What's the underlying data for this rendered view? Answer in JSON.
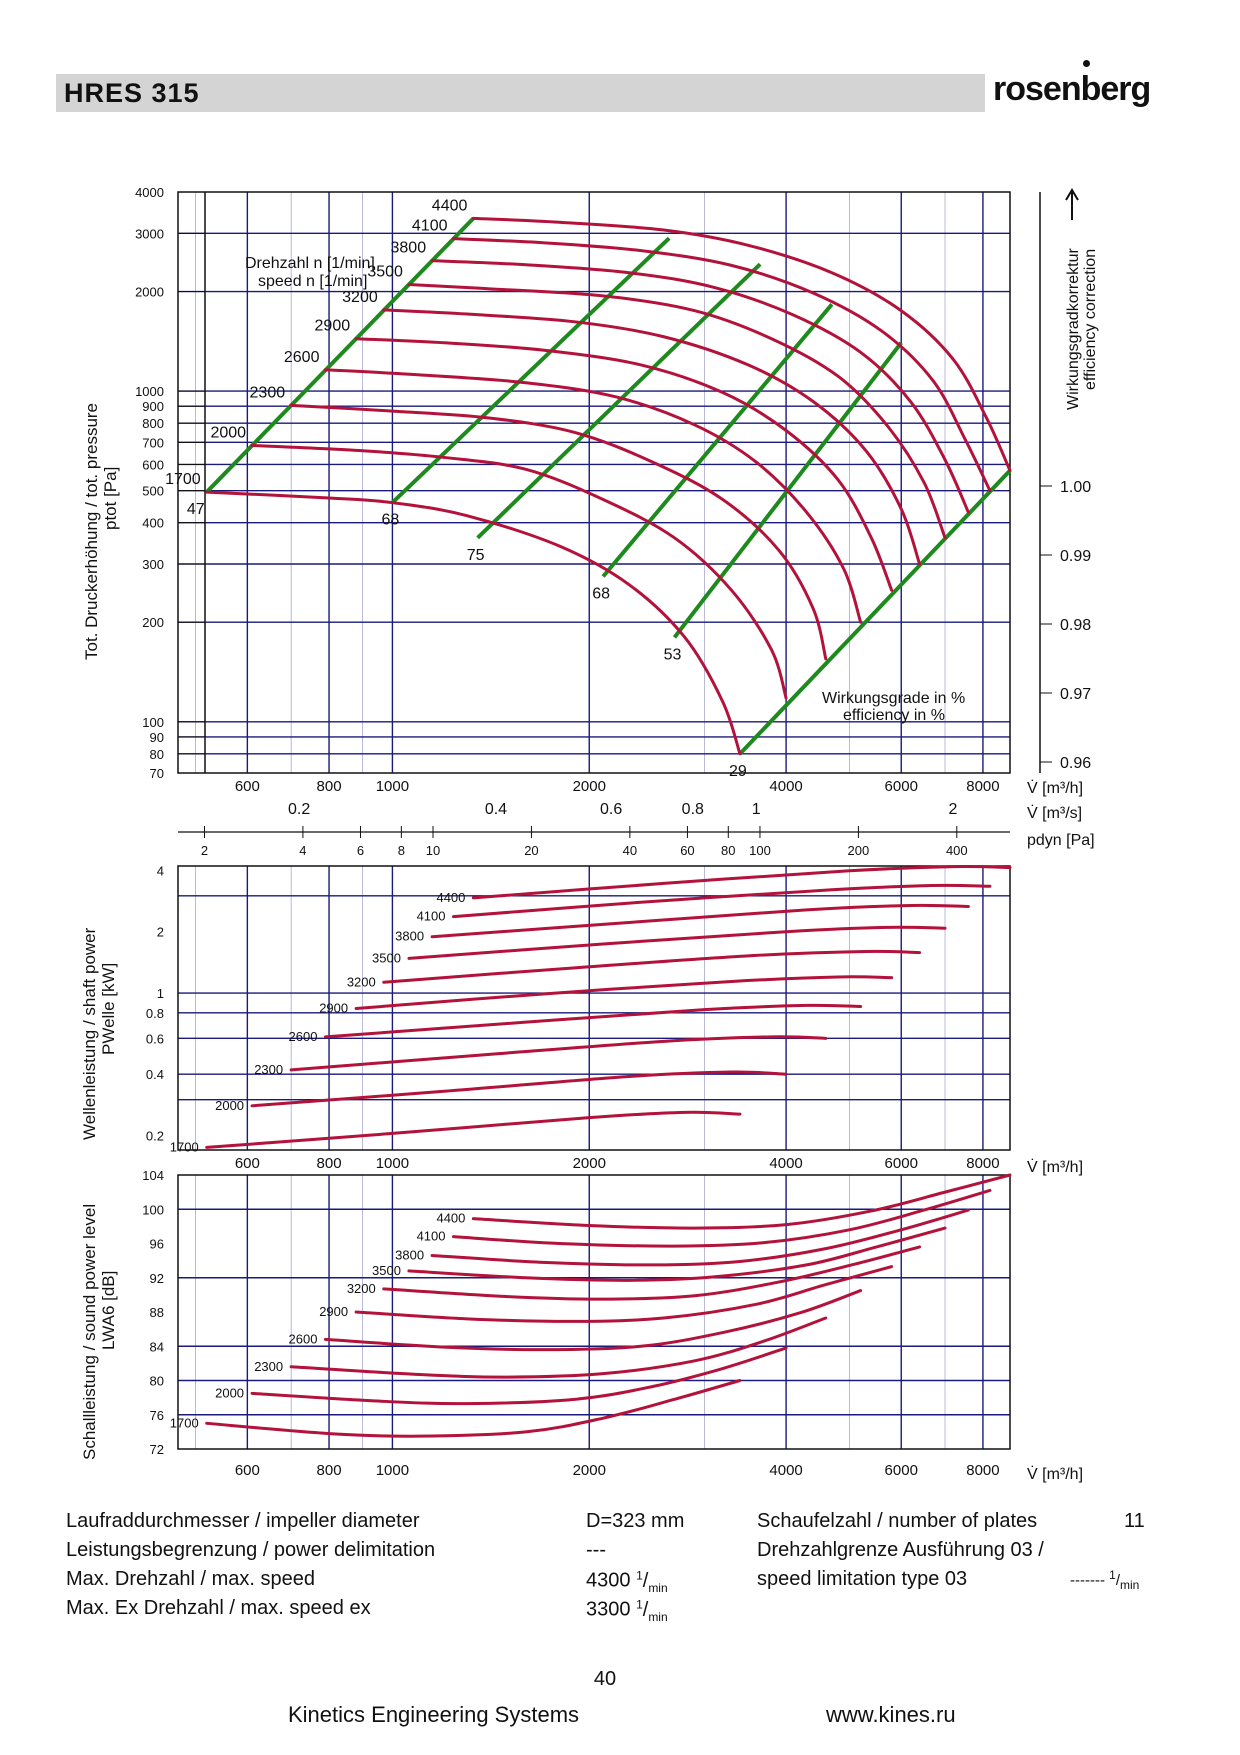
{
  "header": {
    "model": "HRES  315",
    "brand": "rosenberg"
  },
  "colors": {
    "curve": "#b3123a",
    "efficiency_line": "#1e8a1e",
    "grid": "#1a1a7a",
    "header_bg": "#d4d4d4"
  },
  "chart_data": [
    {
      "type": "line",
      "title": "",
      "ylabel": "Tot. Druckerhöhung / tot. pressure",
      "ylabel_symbol": "ptot [Pa]",
      "xlabel": "V̇ [m³/h]",
      "x2label": "V̇ [m³/s]",
      "x3label": "pdyn [Pa]",
      "xscale": "log",
      "yscale": "log",
      "xlim": [
        470,
        8800
      ],
      "ylim": [
        70,
        4000
      ],
      "grid": true,
      "speed_label_line1": "Drehzahl n [1/min]",
      "speed_label_line2": "speed n [1/min]",
      "right_axis_label_line1": "Wirkungsgradkorrektur",
      "right_axis_label_line2": "efficiency correction",
      "efficiency_note_line1": "Wirkungsgrade in %",
      "efficiency_note_line2": "efficiency in %",
      "y_ticks": [
        4000,
        3000,
        2000,
        1000,
        900,
        800,
        700,
        600,
        500,
        400,
        300,
        200,
        100,
        90,
        80,
        70
      ],
      "x_ticks": [
        600,
        800,
        1000,
        2000,
        4000,
        6000,
        8000
      ],
      "x2_ticks": [
        0.2,
        0.4,
        0.6,
        0.8,
        1,
        2
      ],
      "x3_ticks": [
        2,
        4,
        6,
        8,
        10,
        20,
        40,
        60,
        80,
        100,
        200,
        400
      ],
      "efficiency_correction_ticks": [
        "1.00",
        "0.99",
        "0.98",
        "0.97",
        "0.96"
      ],
      "series": [
        {
          "name": "1700",
          "x": [
            520,
            800,
            1000,
            1300,
            1800,
            2300,
            2800,
            3200,
            3400
          ],
          "y": [
            495,
            475,
            460,
            420,
            340,
            260,
            180,
            115,
            80
          ]
        },
        {
          "name": "2000",
          "x": [
            610,
            900,
            1200,
            1600,
            2100,
            2700,
            3300,
            3800,
            4000
          ],
          "y": [
            685,
            660,
            630,
            580,
            470,
            360,
            250,
            165,
            118
          ]
        },
        {
          "name": "2300",
          "x": [
            700,
            1000,
            1400,
            1900,
            2500,
            3200,
            3900,
            4400,
            4600
          ],
          "y": [
            905,
            870,
            830,
            750,
            610,
            470,
            330,
            220,
            155
          ]
        },
        {
          "name": "2600",
          "x": [
            790,
            1100,
            1600,
            2200,
            2900,
            3600,
            4300,
            4900,
            5200
          ],
          "y": [
            1160,
            1120,
            1060,
            960,
            790,
            610,
            430,
            290,
            200
          ]
        },
        {
          "name": "2900",
          "x": [
            880,
            1200,
            1700,
            2400,
            3200,
            4000,
            4800,
            5400,
            5800
          ],
          "y": [
            1440,
            1400,
            1330,
            1200,
            990,
            760,
            540,
            360,
            250
          ]
        },
        {
          "name": "3200",
          "x": [
            970,
            1300,
            1900,
            2600,
            3500,
            4400,
            5300,
            6000,
            6400
          ],
          "y": [
            1760,
            1710,
            1620,
            1460,
            1200,
            930,
            660,
            440,
            300
          ]
        },
        {
          "name": "3500",
          "x": [
            1060,
            1400,
            2100,
            2900,
            3800,
            4800,
            5700,
            6500,
            7000
          ],
          "y": [
            2100,
            2040,
            1940,
            1750,
            1440,
            1110,
            790,
            530,
            360
          ]
        },
        {
          "name": "3800",
          "x": [
            1150,
            1600,
            2300,
            3100,
            4100,
            5200,
            6200,
            7000,
            7600
          ],
          "y": [
            2480,
            2410,
            2280,
            2060,
            1700,
            1310,
            930,
            620,
            430
          ]
        },
        {
          "name": "4100",
          "x": [
            1240,
            1700,
            2400,
            3300,
            4400,
            5600,
            6700,
            7500,
            8200
          ],
          "y": [
            2890,
            2810,
            2660,
            2400,
            1980,
            1520,
            1080,
            720,
            500
          ]
        },
        {
          "name": "4400",
          "x": [
            1330,
            1800,
            2600,
            3500,
            4700,
            6000,
            7200,
            8100,
            8800
          ],
          "y": [
            3330,
            3240,
            3070,
            2760,
            2280,
            1750,
            1250,
            830,
            575
          ]
        }
      ],
      "efficiency_lines": [
        {
          "name": "47",
          "x": [
            520,
            1330
          ],
          "y": [
            495,
            3330
          ]
        },
        {
          "name": "68",
          "x": [
            1000,
            2650
          ],
          "y": [
            460,
            2900
          ]
        },
        {
          "name": "75",
          "x": [
            1350,
            3650
          ],
          "y": [
            360,
            2420
          ]
        },
        {
          "name": "68",
          "x": [
            2100,
            4700
          ],
          "y": [
            275,
            1830
          ]
        },
        {
          "name": "53",
          "x": [
            2700,
            6000
          ],
          "y": [
            180,
            1400
          ]
        },
        {
          "name": "29",
          "x": [
            3400,
            8800
          ],
          "y": [
            80,
            575
          ]
        }
      ]
    },
    {
      "type": "line",
      "title": "",
      "ylabel": "Wellenleistung / shaft power",
      "ylabel_symbol": "PWelle [kW]",
      "xlabel": "V̇ [m³/h]",
      "xscale": "log",
      "yscale": "log",
      "xlim": [
        470,
        8800
      ],
      "ylim": [
        0.17,
        4.2
      ],
      "grid": true,
      "y_ticks": [
        "4",
        "2",
        "1",
        "0.8",
        "0.6",
        "0.4",
        "0.2"
      ],
      "x_ticks": [
        600,
        800,
        1000,
        2000,
        4000,
        6000,
        8000
      ],
      "series": [
        {
          "name": "1700",
          "x": [
            520,
            1000,
            2000,
            2800,
            3400
          ],
          "y": [
            0.175,
            0.205,
            0.245,
            0.26,
            0.255
          ]
        },
        {
          "name": "2000",
          "x": [
            610,
            1200,
            2300,
            3300,
            4000
          ],
          "y": [
            0.28,
            0.33,
            0.39,
            0.41,
            0.4
          ]
        },
        {
          "name": "2300",
          "x": [
            700,
            1400,
            2600,
            3800,
            4600
          ],
          "y": [
            0.42,
            0.5,
            0.58,
            0.61,
            0.6
          ]
        },
        {
          "name": "2600",
          "x": [
            790,
            1600,
            3000,
            4300,
            5200
          ],
          "y": [
            0.61,
            0.72,
            0.83,
            0.87,
            0.86
          ]
        },
        {
          "name": "2900",
          "x": [
            880,
            1700,
            3300,
            4800,
            5800
          ],
          "y": [
            0.84,
            0.99,
            1.14,
            1.2,
            1.19
          ]
        },
        {
          "name": "3200",
          "x": [
            970,
            1900,
            3600,
            5300,
            6400
          ],
          "y": [
            1.13,
            1.33,
            1.53,
            1.6,
            1.58
          ]
        },
        {
          "name": "3500",
          "x": [
            1060,
            2100,
            4000,
            5700,
            7000
          ],
          "y": [
            1.48,
            1.74,
            2.0,
            2.1,
            2.08
          ]
        },
        {
          "name": "3800",
          "x": [
            1150,
            2300,
            4300,
            6200,
            7600
          ],
          "y": [
            1.89,
            2.22,
            2.56,
            2.69,
            2.66
          ]
        },
        {
          "name": "4100",
          "x": [
            1240,
            2400,
            4700,
            6700,
            8200
          ],
          "y": [
            2.37,
            2.79,
            3.21,
            3.37,
            3.34
          ]
        },
        {
          "name": "4400",
          "x": [
            1330,
            2600,
            5000,
            7200,
            8800
          ],
          "y": [
            2.93,
            3.45,
            3.98,
            4.17,
            4.13
          ]
        }
      ]
    },
    {
      "type": "line",
      "title": "",
      "ylabel": "Schallleistung / sound power level",
      "ylabel_symbol": "LWA6 [dB]",
      "xlabel": "V̇ [m³/h]",
      "xscale": "log",
      "yscale": "linear",
      "xlim": [
        470,
        8800
      ],
      "ylim": [
        72,
        104
      ],
      "grid": true,
      "y_ticks": [
        104,
        100,
        96,
        92,
        88,
        84,
        80,
        76,
        72
      ],
      "x_ticks": [
        600,
        800,
        1000,
        2000,
        4000,
        6000,
        8000
      ],
      "series": [
        {
          "name": "1700",
          "x": [
            520,
            800,
            1100,
            1600,
            2100,
            2700,
            3400
          ],
          "y": [
            75.0,
            73.8,
            73.5,
            74.0,
            75.6,
            77.8,
            80.0
          ]
        },
        {
          "name": "2000",
          "x": [
            610,
            950,
            1300,
            1900,
            2500,
            3200,
            4000
          ],
          "y": [
            78.5,
            77.6,
            77.3,
            77.8,
            79.3,
            81.4,
            83.8
          ]
        },
        {
          "name": "2300",
          "x": [
            700,
            1100,
            1500,
            2100,
            2900,
            3700,
            4600
          ],
          "y": [
            81.6,
            80.7,
            80.4,
            80.8,
            82.3,
            84.6,
            87.3
          ]
        },
        {
          "name": "2600",
          "x": [
            790,
            1200,
            1700,
            2400,
            3200,
            4200,
            5200
          ],
          "y": [
            84.8,
            83.9,
            83.6,
            84.0,
            85.6,
            87.9,
            90.5
          ]
        },
        {
          "name": "2900",
          "x": [
            880,
            1300,
            1900,
            2600,
            3600,
            4600,
            5800
          ],
          "y": [
            88.0,
            87.2,
            86.9,
            87.3,
            88.9,
            91.2,
            93.3
          ]
        },
        {
          "name": "3200",
          "x": [
            970,
            1500,
            2100,
            2900,
            3900,
            5100,
            6400
          ],
          "y": [
            90.7,
            89.8,
            89.5,
            89.9,
            91.5,
            93.6,
            95.6
          ]
        },
        {
          "name": "3500",
          "x": [
            1060,
            1600,
            2300,
            3100,
            4300,
            5500,
            7000
          ],
          "y": [
            92.8,
            92.0,
            91.7,
            92.1,
            93.5,
            95.6,
            97.8
          ]
        },
        {
          "name": "3800",
          "x": [
            1150,
            1700,
            2500,
            3400,
            4600,
            6000,
            7600
          ],
          "y": [
            94.6,
            93.8,
            93.5,
            93.9,
            95.4,
            97.6,
            99.9
          ]
        },
        {
          "name": "4100",
          "x": [
            1240,
            1800,
            2700,
            3700,
            5000,
            6500,
            8200
          ],
          "y": [
            96.8,
            96.0,
            95.7,
            96.1,
            97.6,
            99.9,
            102.2
          ]
        },
        {
          "name": "4400",
          "x": [
            1330,
            2000,
            2900,
            4000,
            5400,
            7000,
            8800
          ],
          "y": [
            98.9,
            98.1,
            97.8,
            98.2,
            99.8,
            102.0,
            104.0
          ]
        }
      ]
    }
  ],
  "specs": [
    {
      "label": "Laufraddurchmesser / impeller diameter",
      "value": "D=323 mm",
      "unit": ""
    },
    {
      "label": "Leistungsbegrenzung / power delimitation",
      "value": "---",
      "unit": ""
    },
    {
      "label": "Max. Drehzahl / max. speed",
      "value": "4300",
      "unit": "1/min"
    },
    {
      "label": "Max. Ex Drehzahl / max. speed ex",
      "value": "3300",
      "unit": "1/min"
    }
  ],
  "specs_right": [
    {
      "label": "Schaufelzahl / number of plates",
      "value": "11"
    },
    {
      "label": "Drehzahlgrenze Ausführung 03 /",
      "value": ""
    },
    {
      "label": "speed limitation type 03",
      "value": "-------",
      "unit": "1/min"
    }
  ],
  "footer": {
    "page": "40",
    "company": "Kinetics Engineering Systems",
    "url": "www.kines.ru"
  }
}
